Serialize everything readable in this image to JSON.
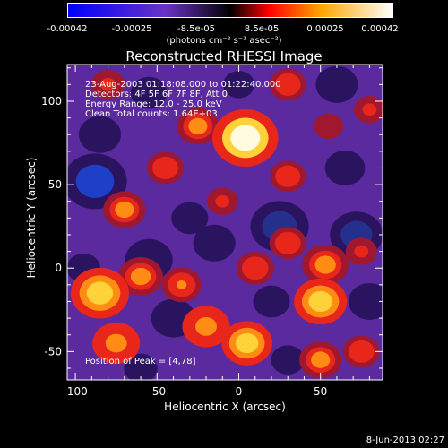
{
  "colorbar": {
    "ticks": [
      "-0.00042",
      "-0.00025",
      "-8.5e-05",
      "8.5e-05",
      "0.00025",
      "0.00042"
    ],
    "units": "(photons cm⁻² s⁻¹ asec⁻²)",
    "colors": [
      "#0000ff",
      "#6a33c6",
      "#000000",
      "#ff0000",
      "#ffa500",
      "#ffffff"
    ]
  },
  "chart_data": {
    "type": "heatmap",
    "title": "Reconstructed RHESSI Image",
    "xlabel": "Heliocentric X (arcsec)",
    "ylabel": "Heliocentric Y (arcsec)",
    "xlim": [
      -105,
      88
    ],
    "ylim": [
      -67,
      122
    ],
    "xticks": [
      -100,
      -50,
      0,
      50
    ],
    "yticks": [
      -50,
      0,
      50,
      100
    ],
    "annotations": [
      "23-Aug-2003 01:18:08.000 to 01:22:40.000",
      "Detectors: 4F 5F 6F 7F 8F, Att 0",
      "Energy Range: 12.0 - 25.0 keV",
      "Clean    Total counts: 1.64E+03"
    ],
    "peak_label": "Position of Peak = [4,78]",
    "sources": [
      {
        "x": 4,
        "y": 78,
        "value": 0.00042
      },
      {
        "x": -25,
        "y": 85,
        "value": 0.0002
      },
      {
        "x": 30,
        "y": 110,
        "value": 0.00015
      },
      {
        "x": -80,
        "y": 110,
        "value": 0.00012
      },
      {
        "x": -70,
        "y": 35,
        "value": 0.0002
      },
      {
        "x": -45,
        "y": 60,
        "value": 0.00015
      },
      {
        "x": -10,
        "y": 40,
        "value": 0.0001
      },
      {
        "x": 30,
        "y": 55,
        "value": 0.00014
      },
      {
        "x": -85,
        "y": -15,
        "value": 0.00035
      },
      {
        "x": -60,
        "y": -5,
        "value": 0.00022
      },
      {
        "x": -35,
        "y": -10,
        "value": 0.00018
      },
      {
        "x": -75,
        "y": -45,
        "value": 0.00025
      },
      {
        "x": -20,
        "y": -35,
        "value": 0.00025
      },
      {
        "x": 5,
        "y": -45,
        "value": 0.00028
      },
      {
        "x": 50,
        "y": -20,
        "value": 0.0003
      },
      {
        "x": 50,
        "y": -55,
        "value": 0.0002
      },
      {
        "x": 75,
        "y": -50,
        "value": 0.00015
      },
      {
        "x": 53,
        "y": 2,
        "value": 0.00024
      },
      {
        "x": 10,
        "y": 0,
        "value": 0.00016
      },
      {
        "x": 30,
        "y": 15,
        "value": 0.00015
      },
      {
        "x": 75,
        "y": 10,
        "value": 0.0001
      },
      {
        "x": 80,
        "y": 95,
        "value": 0.0001
      },
      {
        "x": 55,
        "y": 85,
        "value": 8e-05
      },
      {
        "x": -88,
        "y": 52,
        "value": -0.0004
      },
      {
        "x": 25,
        "y": 25,
        "value": -0.00035
      },
      {
        "x": 72,
        "y": 20,
        "value": -0.0003
      },
      {
        "x": -55,
        "y": 5,
        "value": -0.00025
      },
      {
        "x": -40,
        "y": -30,
        "value": -0.00022
      },
      {
        "x": -15,
        "y": 15,
        "value": -0.0002
      },
      {
        "x": -85,
        "y": 80,
        "value": -0.0002
      },
      {
        "x": 60,
        "y": 110,
        "value": -0.0002
      },
      {
        "x": 65,
        "y": 60,
        "value": -0.00018
      },
      {
        "x": 20,
        "y": -20,
        "value": -0.00015
      },
      {
        "x": -30,
        "y": 30,
        "value": -0.00015
      },
      {
        "x": -95,
        "y": 0,
        "value": -0.00012
      },
      {
        "x": 80,
        "y": -20,
        "value": -0.0002
      },
      {
        "x": -60,
        "y": -60,
        "value": -0.00012
      },
      {
        "x": 30,
        "y": -55,
        "value": -0.00012
      },
      {
        "x": -55,
        "y": 105,
        "value": -0.00015
      },
      {
        "x": 0,
        "y": 110,
        "value": -0.0001
      }
    ]
  },
  "footer": "8-Jun-2013 02:27"
}
